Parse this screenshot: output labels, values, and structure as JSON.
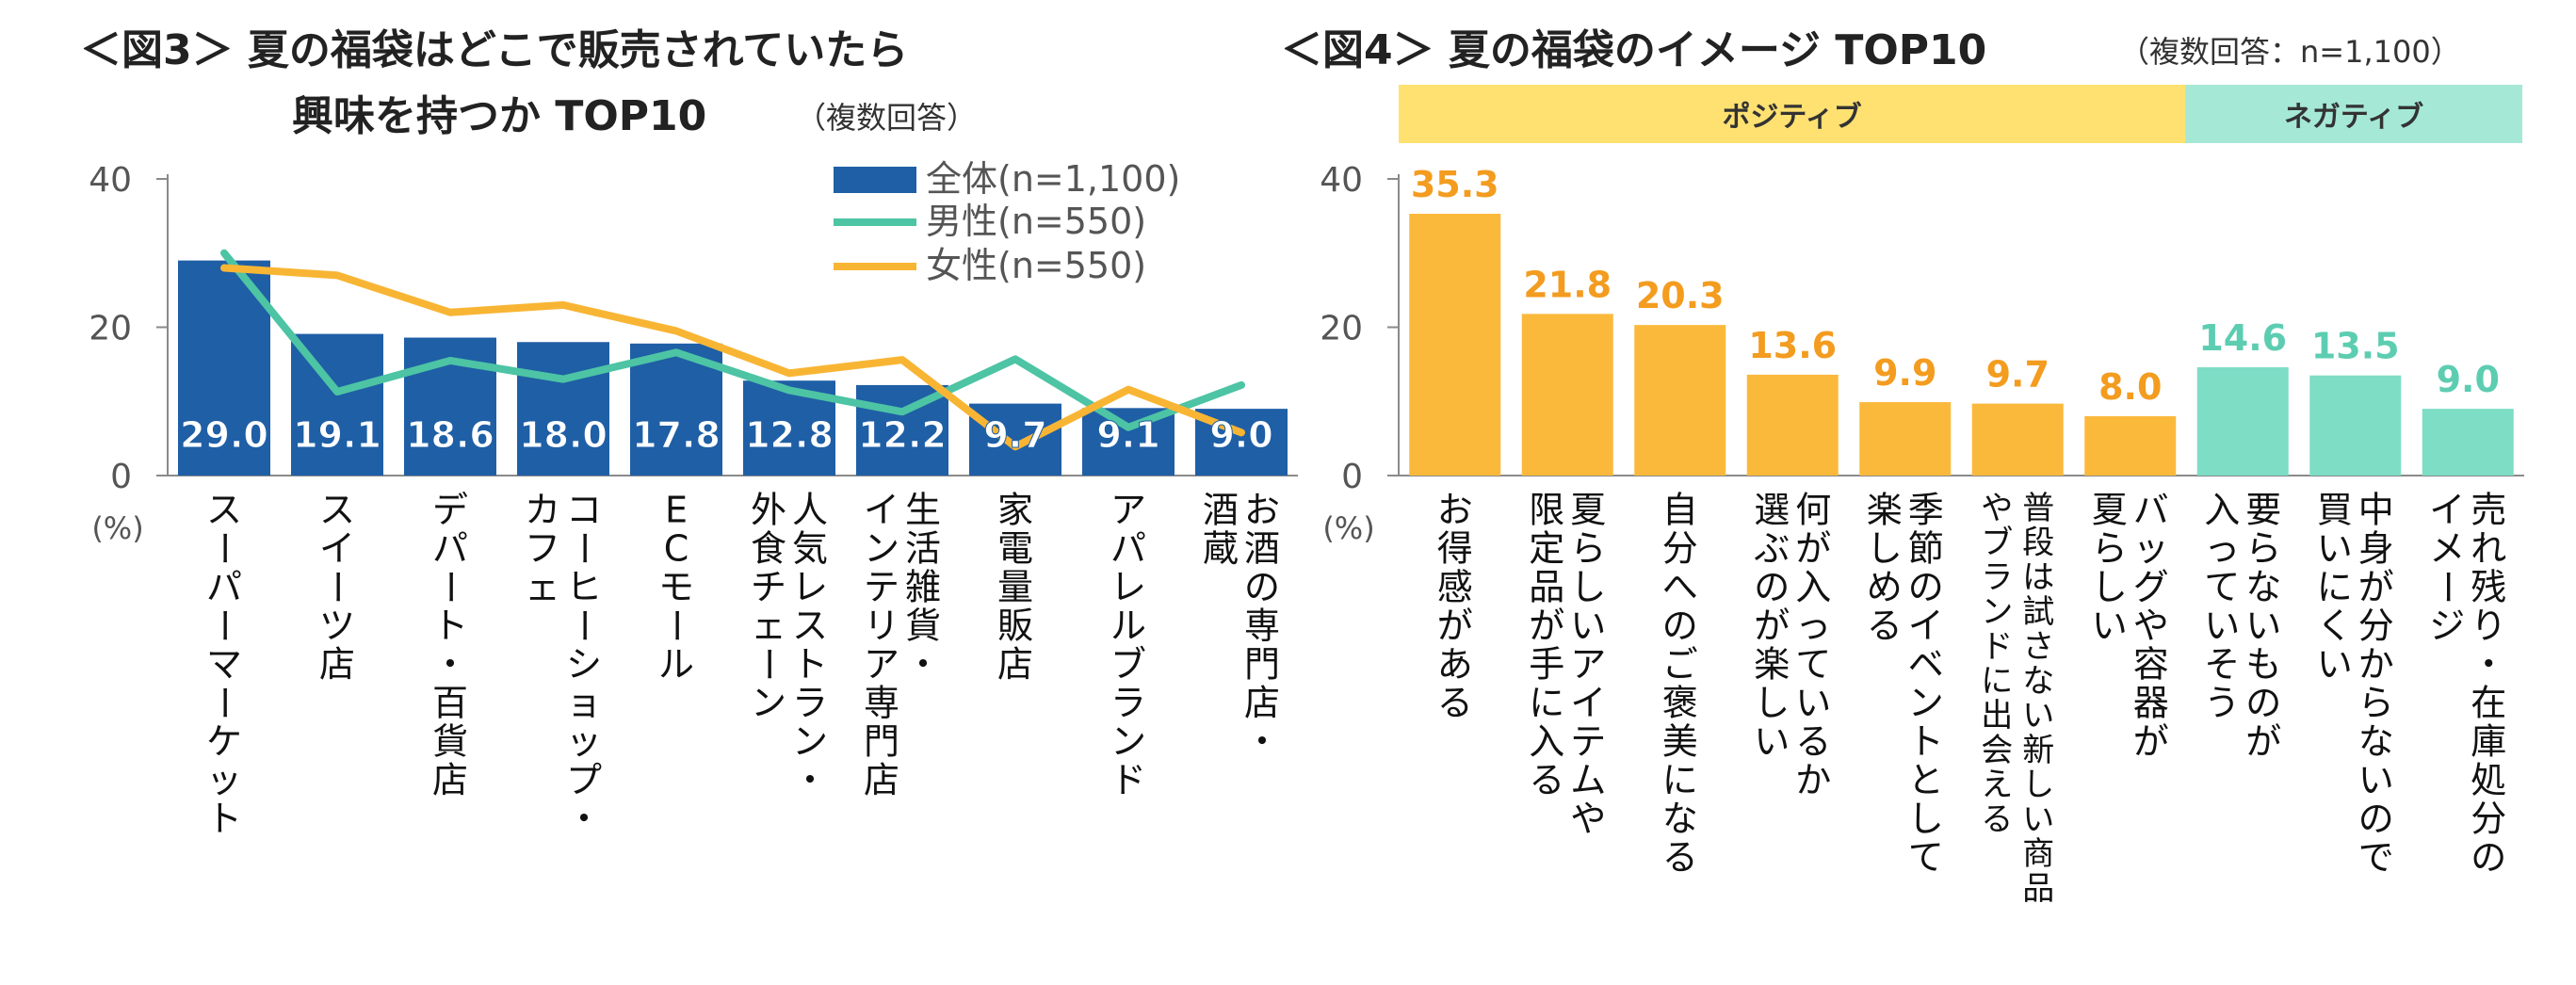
{
  "chart_data": [
    {
      "type": "bar",
      "title_line1": "＜図3＞ 夏の福袋はどこで販売されていたら",
      "title_line2": "興味を持つか TOP10",
      "subtitle": "（複数回答）",
      "ylabel": "(%)",
      "ylim": [
        0,
        40
      ],
      "yticks": [
        "0",
        "20",
        "40"
      ],
      "legend_position": "top-right",
      "categories": [
        "スーパーマーケット",
        "スイーツ店",
        "デパート・百貨店",
        "コーヒーショップ・カフェ",
        "ECモール",
        "人気レストラン・外食チェーン",
        "生活雑貨・インテリア専門店",
        "家電量販店",
        "アパレルブランド",
        "お酒の専門店・酒蔵"
      ],
      "series": [
        {
          "name": "全体(n=1,100)",
          "kind": "bar",
          "color": "#1f5fa6",
          "values": [
            29.0,
            19.1,
            18.6,
            18.0,
            17.8,
            12.8,
            12.2,
            9.7,
            9.1,
            9.0
          ],
          "labels": [
            "29.0",
            "19.1",
            "18.6",
            "18.0",
            "17.8",
            "12.8",
            "12.2",
            "9.7",
            "9.1",
            "9.0"
          ]
        },
        {
          "name": "男性(n=550)",
          "kind": "line",
          "color": "#4dc4a4",
          "values": [
            30.0,
            11.3,
            15.5,
            13.0,
            16.6,
            11.5,
            8.6,
            15.7,
            6.5,
            12.2
          ]
        },
        {
          "name": "女性(n=550)",
          "kind": "line",
          "color": "#f8b534",
          "values": [
            28.0,
            27.0,
            22.0,
            23.0,
            19.5,
            13.8,
            15.6,
            3.9,
            11.6,
            5.8
          ]
        }
      ]
    },
    {
      "type": "bar",
      "title": "＜図4＞ 夏の福袋のイメージ TOP10",
      "subtitle": "（複数回答：n=1,100）",
      "ylabel": "(%)",
      "ylim": [
        0,
        40
      ],
      "yticks": [
        "0",
        "20",
        "40"
      ],
      "groups": [
        {
          "label": "ポジティブ",
          "count": 7,
          "color": "#ffe171"
        },
        {
          "label": "ネガティブ",
          "count": 3,
          "color": "#a5e8d6"
        }
      ],
      "categories": [
        "お得感がある",
        "夏らしいアイテムや限定品が手に入る",
        "自分へのご褒美になる",
        "何が入っているか選ぶのが楽しい",
        "季節のイベントとして楽しめる",
        "普段は試さない新しい商品やブランドに出会える",
        "バッグや容器が夏らしい",
        "要らないものが入っていそう",
        "中身が分からないので買いにくい",
        "売れ残り・在庫処分のイメージ"
      ],
      "values": [
        35.3,
        21.8,
        20.3,
        13.6,
        9.9,
        9.7,
        8.0,
        14.6,
        13.5,
        9.0
      ],
      "labels": [
        "35.3",
        "21.8",
        "20.3",
        "13.6",
        "9.9",
        "9.7",
        "8.0",
        "14.6",
        "13.5",
        "9.0"
      ],
      "colors": [
        "#fbb93c",
        "#fbb93c",
        "#fbb93c",
        "#fbb93c",
        "#fbb93c",
        "#fbb93c",
        "#fbb93c",
        "#7dddc5",
        "#7dddc5",
        "#7dddc5"
      ],
      "label_colors": [
        "#f39c1f",
        "#f39c1f",
        "#f39c1f",
        "#f39c1f",
        "#f39c1f",
        "#f39c1f",
        "#f39c1f",
        "#5dcdb1",
        "#5dcdb1",
        "#5dcdb1"
      ]
    }
  ]
}
